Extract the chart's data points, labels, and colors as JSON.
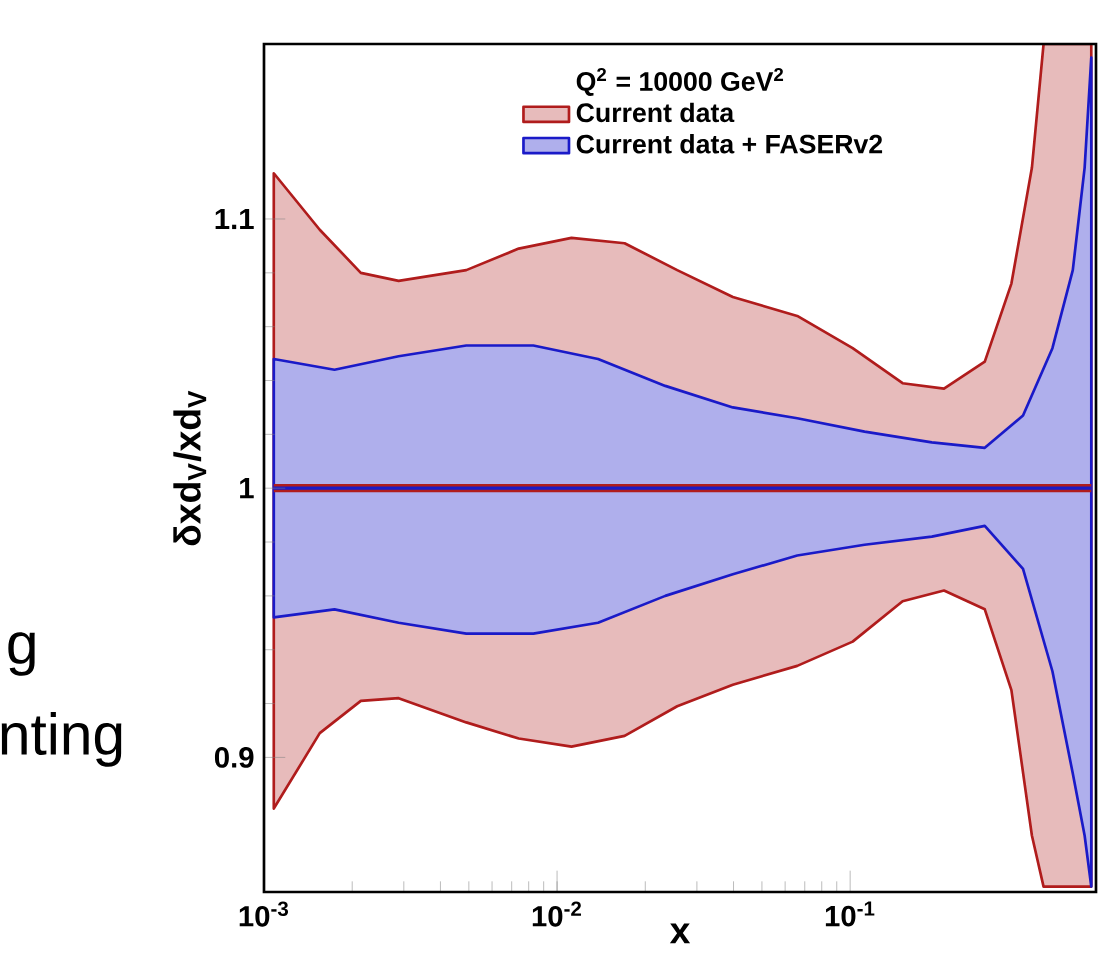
{
  "chart_data": {
    "type": "line",
    "xlabel": "x",
    "ylabel": "δxd$_{V}$/xd$_{V}$",
    "legend_title": "Q$^{2}$ = 10000 GeV$^{2}$",
    "log": "x",
    "legend": "top",
    "marker": "none",
    "xlim": [
      0.001,
      0.69
    ],
    "ylim": [
      0.85,
      1.165
    ],
    "xticks": [
      {
        "value": 0.001,
        "label": "10$^{-3}$"
      },
      {
        "value": 0.01,
        "label": "10$^{-2}$"
      },
      {
        "value": 0.1,
        "label": "10$^{-1}$"
      }
    ],
    "yticks": [
      0.9,
      1,
      1.1
    ],
    "annotations": [
      "g",
      "nting"
    ],
    "series": [
      {
        "name": "Current data",
        "color": "#b01c1c",
        "x": [
          0.00108,
          0.00155,
          0.00214,
          0.00288,
          0.0049,
          0.0074,
          0.0112,
          0.017,
          0.0257,
          0.0398,
          0.066,
          0.102,
          0.151,
          0.209,
          0.288,
          0.355,
          0.417,
          0.457,
          0.665
        ],
        "values": [
          1,
          1,
          1,
          1,
          1,
          1,
          1,
          1,
          1,
          1,
          1,
          1,
          1,
          1,
          1,
          1,
          1,
          1,
          1
        ],
        "upper": [
          1.117,
          1.096,
          1.08,
          1.077,
          1.081,
          1.089,
          1.093,
          1.091,
          1.081,
          1.071,
          1.064,
          1.052,
          1.039,
          1.037,
          1.047,
          1.076,
          1.119,
          1.165,
          1.165
        ],
        "lower": [
          0.881,
          0.909,
          0.921,
          0.922,
          0.913,
          0.907,
          0.904,
          0.908,
          0.919,
          0.927,
          0.934,
          0.943,
          0.958,
          0.962,
          0.955,
          0.925,
          0.871,
          0.852,
          0.852
        ]
      },
      {
        "name": "Current data + FASERv2",
        "color": "#1a1ac8",
        "x": [
          0.00108,
          0.00174,
          0.00288,
          0.0049,
          0.0083,
          0.0138,
          0.0234,
          0.0398,
          0.066,
          0.112,
          0.19,
          0.288,
          0.389,
          0.49,
          0.575,
          0.631,
          0.665
        ],
        "values": [
          1,
          1,
          1,
          1,
          1,
          1,
          1,
          1,
          1,
          1,
          1,
          1,
          1,
          1,
          1,
          1,
          1
        ],
        "upper": [
          1.048,
          1.044,
          1.049,
          1.053,
          1.053,
          1.048,
          1.038,
          1.03,
          1.026,
          1.021,
          1.017,
          1.015,
          1.027,
          1.052,
          1.081,
          1.119,
          1.16
        ],
        "lower": [
          0.952,
          0.955,
          0.95,
          0.946,
          0.946,
          0.95,
          0.96,
          0.968,
          0.975,
          0.979,
          0.982,
          0.986,
          0.97,
          0.932,
          0.894,
          0.871,
          0.852
        ]
      }
    ]
  }
}
